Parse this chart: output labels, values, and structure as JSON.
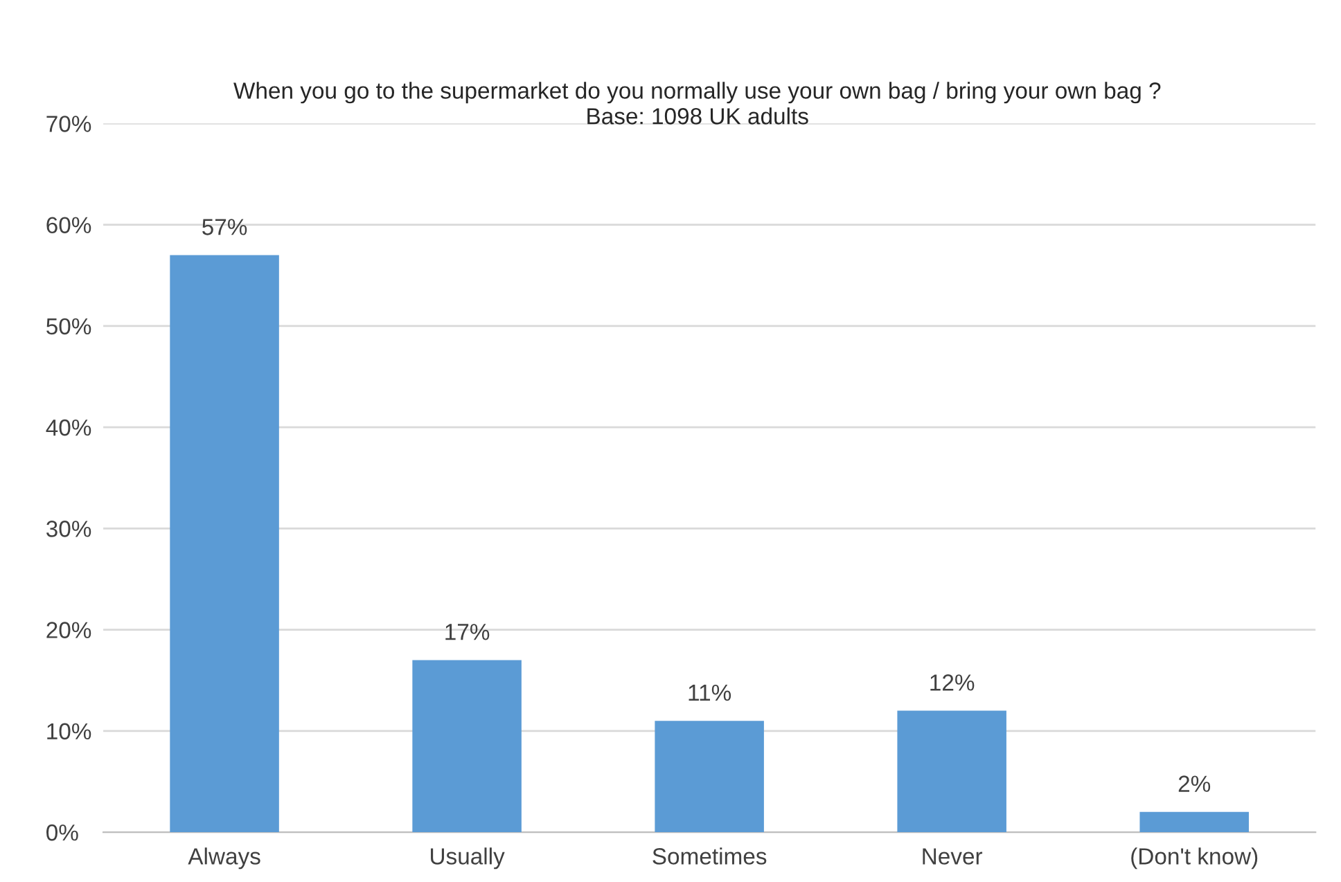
{
  "chart_data": {
    "type": "bar",
    "title": "When you go to the supermarket do you normally use your own bag / bring your own bag ?",
    "subtitle": "Base: 1098 UK adults",
    "categories": [
      "Always",
      "Usually",
      "Sometimes",
      "Never",
      "(Don't know)"
    ],
    "values": [
      57,
      17,
      11,
      12,
      2
    ],
    "value_labels": [
      "57%",
      "17%",
      "11%",
      "12%",
      "2%"
    ],
    "color": "#5b9bd5",
    "ylim": [
      0,
      70
    ],
    "yticks": [
      {
        "value": 0,
        "label": "0%"
      },
      {
        "value": 10,
        "label": "10%"
      },
      {
        "value": 20,
        "label": "20%"
      },
      {
        "value": 30,
        "label": "30%"
      },
      {
        "value": 40,
        "label": "40%"
      },
      {
        "value": 50,
        "label": "50%"
      },
      {
        "value": 60,
        "label": "60%"
      },
      {
        "value": 70,
        "label": "70%"
      }
    ],
    "grid": "y",
    "legend": false
  }
}
